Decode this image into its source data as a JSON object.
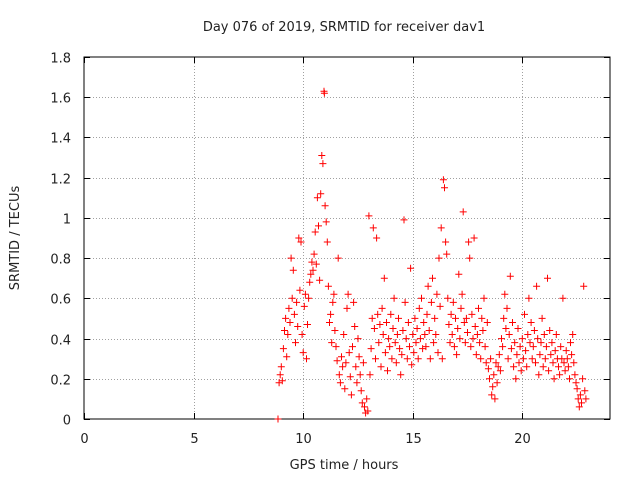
{
  "chart_data": {
    "type": "scatter",
    "title": "Day 076 of 2019, SRMTID for receiver dav1",
    "xlabel": "GPS time / hours",
    "ylabel": "SRMTID / TECUs",
    "xlim": [
      0,
      24
    ],
    "ylim": [
      0,
      1.8
    ],
    "xticks": [
      0,
      5,
      10,
      15,
      20
    ],
    "yticks": [
      0,
      0.2,
      0.4,
      0.6,
      0.8,
      1,
      1.2,
      1.4,
      1.6,
      1.8
    ],
    "ytick_labels": [
      "0",
      "0.2",
      "0.4",
      "0.6",
      "0.8",
      "1",
      "1.2",
      "1.4",
      "1.6",
      "1.8"
    ],
    "grid": true,
    "marker": "+",
    "color": "#ff0000",
    "series": [
      {
        "name": "SRMTID",
        "points": [
          [
            8.85,
            0.0
          ],
          [
            8.9,
            0.18
          ],
          [
            8.95,
            0.22
          ],
          [
            9.0,
            0.26
          ],
          [
            9.05,
            0.19
          ],
          [
            9.1,
            0.35
          ],
          [
            9.15,
            0.44
          ],
          [
            9.2,
            0.5
          ],
          [
            9.25,
            0.31
          ],
          [
            9.3,
            0.42
          ],
          [
            9.35,
            0.55
          ],
          [
            9.4,
            0.48
          ],
          [
            9.45,
            0.8
          ],
          [
            9.5,
            0.6
          ],
          [
            9.55,
            0.74
          ],
          [
            9.6,
            0.52
          ],
          [
            9.65,
            0.38
          ],
          [
            9.7,
            0.58
          ],
          [
            9.75,
            0.46
          ],
          [
            9.8,
            0.9
          ],
          [
            9.85,
            0.64
          ],
          [
            9.9,
            0.88
          ],
          [
            9.95,
            0.42
          ],
          [
            10.0,
            0.33
          ],
          [
            10.05,
            0.56
          ],
          [
            10.1,
            0.62
          ],
          [
            10.15,
            0.3
          ],
          [
            10.2,
            0.47
          ],
          [
            10.25,
            0.6
          ],
          [
            10.3,
            0.68
          ],
          [
            10.35,
            0.72
          ],
          [
            10.4,
            0.78
          ],
          [
            10.45,
            0.74
          ],
          [
            10.5,
            0.82
          ],
          [
            10.55,
            0.93
          ],
          [
            10.6,
            0.77
          ],
          [
            10.65,
            1.1
          ],
          [
            10.7,
            0.96
          ],
          [
            10.75,
            0.69
          ],
          [
            10.8,
            1.12
          ],
          [
            10.85,
            1.31
          ],
          [
            10.9,
            1.27
          ],
          [
            10.95,
            1.63
          ],
          [
            10.97,
            1.62
          ],
          [
            11.0,
            1.06
          ],
          [
            11.05,
            0.98
          ],
          [
            11.1,
            0.88
          ],
          [
            11.15,
            0.66
          ],
          [
            11.2,
            0.48
          ],
          [
            11.25,
            0.52
          ],
          [
            11.3,
            0.38
          ],
          [
            11.35,
            0.58
          ],
          [
            11.4,
            0.62
          ],
          [
            11.45,
            0.44
          ],
          [
            11.5,
            0.36
          ],
          [
            11.55,
            0.29
          ],
          [
            11.6,
            0.8
          ],
          [
            11.65,
            0.22
          ],
          [
            11.7,
            0.18
          ],
          [
            11.75,
            0.31
          ],
          [
            11.8,
            0.26
          ],
          [
            11.85,
            0.42
          ],
          [
            11.9,
            0.15
          ],
          [
            11.95,
            0.28
          ],
          [
            12.0,
            0.55
          ],
          [
            12.05,
            0.62
          ],
          [
            12.1,
            0.33
          ],
          [
            12.15,
            0.21
          ],
          [
            12.2,
            0.12
          ],
          [
            12.25,
            0.36
          ],
          [
            12.3,
            0.58
          ],
          [
            12.35,
            0.46
          ],
          [
            12.4,
            0.26
          ],
          [
            12.45,
            0.18
          ],
          [
            12.5,
            0.4
          ],
          [
            12.55,
            0.31
          ],
          [
            12.6,
            0.22
          ],
          [
            12.65,
            0.14
          ],
          [
            12.7,
            0.08
          ],
          [
            12.75,
            0.28
          ],
          [
            12.8,
            0.06
          ],
          [
            12.85,
            0.03
          ],
          [
            12.9,
            0.1
          ],
          [
            12.95,
            0.04
          ],
          [
            13.0,
            1.01
          ],
          [
            13.05,
            0.22
          ],
          [
            13.1,
            0.35
          ],
          [
            13.15,
            0.5
          ],
          [
            13.2,
            0.95
          ],
          [
            13.25,
            0.45
          ],
          [
            13.3,
            0.3
          ],
          [
            13.35,
            0.9
          ],
          [
            13.4,
            0.52
          ],
          [
            13.45,
            0.38
          ],
          [
            13.5,
            0.47
          ],
          [
            13.55,
            0.26
          ],
          [
            13.6,
            0.55
          ],
          [
            13.65,
            0.42
          ],
          [
            13.7,
            0.7
          ],
          [
            13.75,
            0.33
          ],
          [
            13.8,
            0.48
          ],
          [
            13.85,
            0.24
          ],
          [
            13.9,
            0.4
          ],
          [
            13.95,
            0.36
          ],
          [
            14.0,
            0.52
          ],
          [
            14.05,
            0.3
          ],
          [
            14.1,
            0.45
          ],
          [
            14.15,
            0.6
          ],
          [
            14.2,
            0.38
          ],
          [
            14.25,
            0.28
          ],
          [
            14.3,
            0.42
          ],
          [
            14.35,
            0.5
          ],
          [
            14.4,
            0.35
          ],
          [
            14.45,
            0.22
          ],
          [
            14.5,
            0.32
          ],
          [
            14.55,
            0.44
          ],
          [
            14.6,
            0.99
          ],
          [
            14.65,
            0.58
          ],
          [
            14.7,
            0.4
          ],
          [
            14.75,
            0.3
          ],
          [
            14.8,
            0.48
          ],
          [
            14.85,
            0.36
          ],
          [
            14.9,
            0.75
          ],
          [
            14.95,
            0.27
          ],
          [
            15.0,
            0.42
          ],
          [
            15.05,
            0.33
          ],
          [
            15.1,
            0.5
          ],
          [
            15.15,
            0.38
          ],
          [
            15.2,
            0.45
          ],
          [
            15.25,
            0.3
          ],
          [
            15.3,
            0.55
          ],
          [
            15.35,
            0.4
          ],
          [
            15.4,
            0.6
          ],
          [
            15.45,
            0.35
          ],
          [
            15.5,
            0.48
          ],
          [
            15.55,
            0.42
          ],
          [
            15.6,
            0.36
          ],
          [
            15.65,
            0.52
          ],
          [
            15.7,
            0.66
          ],
          [
            15.75,
            0.44
          ],
          [
            15.8,
            0.3
          ],
          [
            15.85,
            0.58
          ],
          [
            15.9,
            0.7
          ],
          [
            15.95,
            0.38
          ],
          [
            16.0,
            0.5
          ],
          [
            16.05,
            0.42
          ],
          [
            16.1,
            0.62
          ],
          [
            16.15,
            0.33
          ],
          [
            16.2,
            0.8
          ],
          [
            16.25,
            0.56
          ],
          [
            16.3,
            0.95
          ],
          [
            16.35,
            0.3
          ],
          [
            16.4,
            1.19
          ],
          [
            16.45,
            1.15
          ],
          [
            16.5,
            0.88
          ],
          [
            16.55,
            0.82
          ],
          [
            16.6,
            0.6
          ],
          [
            16.65,
            0.47
          ],
          [
            16.7,
            0.38
          ],
          [
            16.75,
            0.52
          ],
          [
            16.8,
            0.42
          ],
          [
            16.85,
            0.58
          ],
          [
            16.9,
            0.36
          ],
          [
            16.95,
            0.5
          ],
          [
            17.0,
            0.32
          ],
          [
            17.05,
            0.45
          ],
          [
            17.1,
            0.72
          ],
          [
            17.15,
            0.4
          ],
          [
            17.2,
            0.55
          ],
          [
            17.25,
            0.62
          ],
          [
            17.3,
            1.03
          ],
          [
            17.35,
            0.48
          ],
          [
            17.4,
            0.38
          ],
          [
            17.45,
            0.5
          ],
          [
            17.5,
            0.43
          ],
          [
            17.55,
            0.88
          ],
          [
            17.6,
            0.8
          ],
          [
            17.65,
            0.36
          ],
          [
            17.7,
            0.52
          ],
          [
            17.75,
            0.4
          ],
          [
            17.8,
            0.9
          ],
          [
            17.85,
            0.46
          ],
          [
            17.9,
            0.32
          ],
          [
            17.95,
            0.42
          ],
          [
            18.0,
            0.55
          ],
          [
            18.05,
            0.38
          ],
          [
            18.1,
            0.3
          ],
          [
            18.15,
            0.5
          ],
          [
            18.2,
            0.44
          ],
          [
            18.25,
            0.6
          ],
          [
            18.3,
            0.36
          ],
          [
            18.35,
            0.28
          ],
          [
            18.4,
            0.48
          ],
          [
            18.45,
            0.25
          ],
          [
            18.5,
            0.2
          ],
          [
            18.55,
            0.3
          ],
          [
            18.6,
            0.12
          ],
          [
            18.65,
            0.16
          ],
          [
            18.7,
            0.22
          ],
          [
            18.75,
            0.1
          ],
          [
            18.8,
            0.28
          ],
          [
            18.85,
            0.18
          ],
          [
            18.9,
            0.26
          ],
          [
            18.95,
            0.32
          ],
          [
            19.0,
            0.24
          ],
          [
            19.05,
            0.4
          ],
          [
            19.1,
            0.36
          ],
          [
            19.15,
            0.5
          ],
          [
            19.2,
            0.62
          ],
          [
            19.25,
            0.45
          ],
          [
            19.3,
            0.55
          ],
          [
            19.35,
            0.3
          ],
          [
            19.4,
            0.42
          ],
          [
            19.45,
            0.71
          ],
          [
            19.5,
            0.35
          ],
          [
            19.55,
            0.48
          ],
          [
            19.6,
            0.26
          ],
          [
            19.65,
            0.38
          ],
          [
            19.7,
            0.2
          ],
          [
            19.75,
            0.32
          ],
          [
            19.8,
            0.45
          ],
          [
            19.85,
            0.28
          ],
          [
            19.9,
            0.36
          ],
          [
            19.95,
            0.24
          ],
          [
            20.0,
            0.4
          ],
          [
            20.05,
            0.3
          ],
          [
            20.1,
            0.52
          ],
          [
            20.15,
            0.34
          ],
          [
            20.2,
            0.26
          ],
          [
            20.25,
            0.42
          ],
          [
            20.3,
            0.6
          ],
          [
            20.35,
            0.38
          ],
          [
            20.4,
            0.48
          ],
          [
            20.45,
            0.3
          ],
          [
            20.5,
            0.36
          ],
          [
            20.55,
            0.44
          ],
          [
            20.6,
            0.28
          ],
          [
            20.65,
            0.66
          ],
          [
            20.7,
            0.4
          ],
          [
            20.75,
            0.22
          ],
          [
            20.8,
            0.32
          ],
          [
            20.85,
            0.38
          ],
          [
            20.9,
            0.5
          ],
          [
            20.95,
            0.26
          ],
          [
            21.0,
            0.42
          ],
          [
            21.05,
            0.3
          ],
          [
            21.1,
            0.36
          ],
          [
            21.15,
            0.7
          ],
          [
            21.2,
            0.24
          ],
          [
            21.25,
            0.44
          ],
          [
            21.3,
            0.32
          ],
          [
            21.35,
            0.38
          ],
          [
            21.4,
            0.28
          ],
          [
            21.45,
            0.2
          ],
          [
            21.5,
            0.34
          ],
          [
            21.55,
            0.42
          ],
          [
            21.6,
            0.3
          ],
          [
            21.65,
            0.26
          ],
          [
            21.7,
            0.22
          ],
          [
            21.75,
            0.36
          ],
          [
            21.8,
            0.3
          ],
          [
            21.85,
            0.6
          ],
          [
            21.9,
            0.28
          ],
          [
            21.95,
            0.24
          ],
          [
            22.0,
            0.34
          ],
          [
            22.05,
            0.3
          ],
          [
            22.1,
            0.26
          ],
          [
            22.15,
            0.2
          ],
          [
            22.2,
            0.38
          ],
          [
            22.25,
            0.32
          ],
          [
            22.3,
            0.42
          ],
          [
            22.35,
            0.28
          ],
          [
            22.4,
            0.22
          ],
          [
            22.45,
            0.18
          ],
          [
            22.5,
            0.15
          ],
          [
            22.55,
            0.1
          ],
          [
            22.6,
            0.06
          ],
          [
            22.65,
            0.12
          ],
          [
            22.7,
            0.08
          ],
          [
            22.75,
            0.2
          ],
          [
            22.8,
            0.66
          ],
          [
            22.85,
            0.14
          ],
          [
            22.9,
            0.1
          ]
        ]
      }
    ]
  }
}
